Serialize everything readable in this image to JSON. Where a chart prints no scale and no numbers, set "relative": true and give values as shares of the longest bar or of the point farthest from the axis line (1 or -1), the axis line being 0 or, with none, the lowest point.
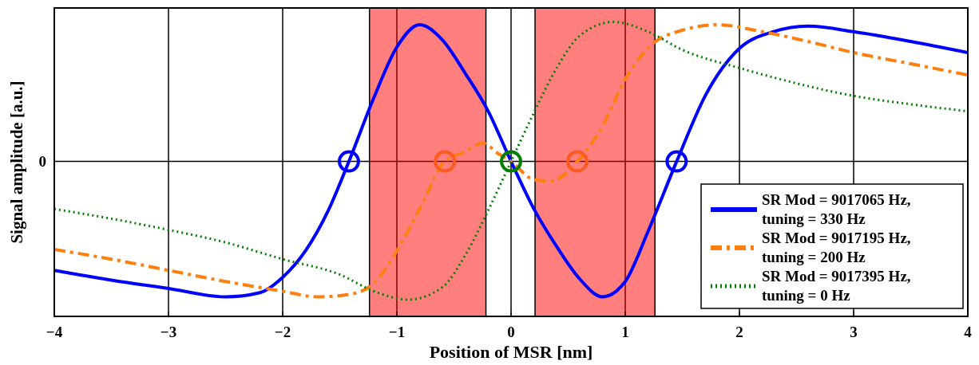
{
  "chart_data": {
    "type": "line",
    "xlabel": "Position of MSR [nm]",
    "ylabel": "Signal amplitude [a.u.]",
    "relative": true,
    "xlim": [
      -4,
      4
    ],
    "xticks": [
      {
        "value": -4,
        "label": "−4"
      },
      {
        "value": -3,
        "label": "−3"
      },
      {
        "value": -2,
        "label": "−2"
      },
      {
        "value": -1,
        "label": "−1"
      },
      0,
      1,
      2,
      3,
      4
    ],
    "grid": "x",
    "legend": "bottom right",
    "ref_lines": [
      {
        "axis": "y",
        "value": 0,
        "label": "0",
        "color": "#000000"
      }
    ],
    "bands": [
      {
        "axis": "x",
        "from": -1.24,
        "to": -0.22,
        "color": "#ff0000"
      },
      {
        "axis": "x",
        "from": 0.21,
        "to": 1.26,
        "color": "#ff0000"
      }
    ],
    "series": [
      {
        "name": "SR Mod = 9017065 Hz, tuning = 330 Hz",
        "color": "#0000ff",
        "line_style": "solid",
        "x": [
          -4,
          -3.5,
          -3,
          -2.5,
          -2.2,
          -2,
          -1.8,
          -1.6,
          -1.42,
          -1.2,
          -1,
          -0.8,
          -0.6,
          -0.4,
          -0.2,
          0,
          0.2,
          0.4,
          0.6,
          0.8,
          1,
          1.2,
          1.45,
          1.7,
          2,
          2.3,
          2.6,
          3,
          3.5,
          4
        ],
        "values": [
          -0.78,
          -0.85,
          -0.91,
          -0.97,
          -0.94,
          -0.83,
          -0.64,
          -0.35,
          0,
          0.46,
          0.82,
          0.98,
          0.87,
          0.63,
          0.36,
          0,
          -0.34,
          -0.61,
          -0.84,
          -0.97,
          -0.86,
          -0.5,
          0,
          0.47,
          0.81,
          0.93,
          0.97,
          0.93,
          0.86,
          0.78
        ]
      },
      {
        "name": "SR Mod = 9017195 Hz, tuning = 200 Hz",
        "color": "#ff7f0e",
        "line_style": "dashed",
        "x": [
          -4,
          -3.5,
          -3,
          -2.5,
          -2,
          -1.7,
          -1.4,
          -1.2,
          -1,
          -0.8,
          -0.58,
          -0.4,
          -0.25,
          -0.1,
          0,
          0.2,
          0.35,
          0.58,
          0.8,
          1,
          1.25,
          1.5,
          1.8,
          2.2,
          2.6,
          3,
          3.5,
          4
        ],
        "values": [
          -0.63,
          -0.7,
          -0.78,
          -0.86,
          -0.93,
          -0.97,
          -0.95,
          -0.87,
          -0.64,
          -0.34,
          0,
          0.07,
          0.13,
          0.05,
          0,
          -0.13,
          -0.14,
          0,
          0.25,
          0.59,
          0.85,
          0.94,
          0.98,
          0.93,
          0.86,
          0.78,
          0.7,
          0.62
        ]
      },
      {
        "name": "SR Mod = 9017395 Hz, tuning = 0 Hz",
        "color": "#008000",
        "line_style": "dotted",
        "x": [
          -4,
          -3.5,
          -3,
          -2.5,
          -2,
          -1.5,
          -1.2,
          -0.9,
          -0.6,
          -0.4,
          -0.2,
          0,
          0.2,
          0.4,
          0.6,
          0.9,
          1.2,
          1.5,
          2,
          2.5,
          3,
          3.5,
          4
        ],
        "values": [
          -0.34,
          -0.41,
          -0.49,
          -0.58,
          -0.7,
          -0.81,
          -0.93,
          -0.99,
          -0.9,
          -0.67,
          -0.35,
          0,
          0.35,
          0.67,
          0.9,
          1,
          0.93,
          0.8,
          0.67,
          0.56,
          0.47,
          0.41,
          0.36
        ]
      },
      {
        "type": "scatter",
        "marker": "circle",
        "color": "#0000ff",
        "x": [
          -1.42,
          1.45
        ],
        "values": [
          0,
          0
        ]
      },
      {
        "type": "scatter",
        "marker": "circle",
        "color": "#ff5a1e",
        "x": [
          -0.58,
          0.58
        ],
        "values": [
          0,
          0
        ]
      },
      {
        "type": "scatter",
        "marker": "circle",
        "color": "#008000",
        "x": [
          0
        ],
        "values": [
          0
        ]
      }
    ]
  }
}
